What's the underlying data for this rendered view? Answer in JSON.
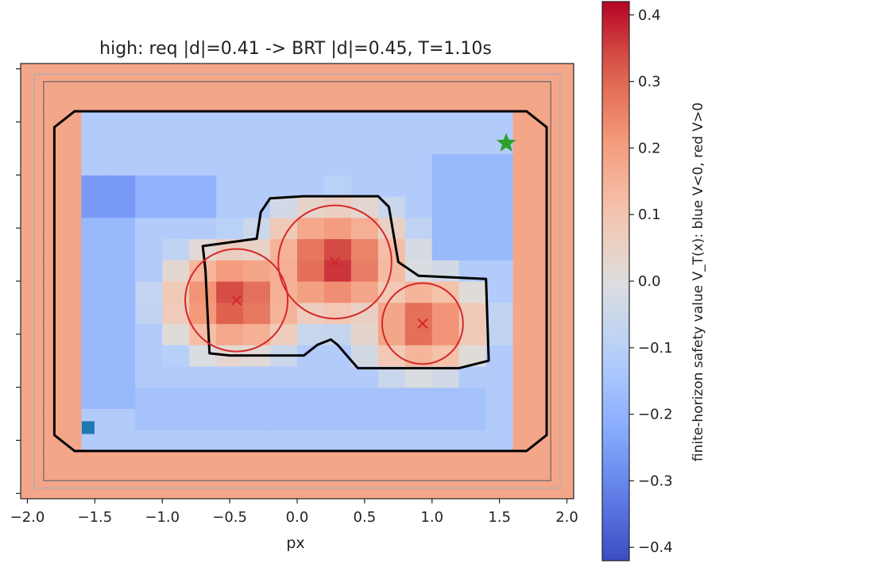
{
  "chart_data": {
    "type": "heatmap",
    "title": "high: req |d|=0.41 -> BRT |d|=0.45, T=1.10s",
    "xlabel": "px",
    "ylabel": "",
    "xlim": [
      -2.05,
      2.05
    ],
    "ylim": [
      -2.05,
      2.05
    ],
    "x_ticks": [
      -2.0,
      -1.5,
      -1.0,
      -0.5,
      0.0,
      0.5,
      1.0,
      1.5,
      2.0
    ],
    "x_tick_labels": [
      "−2.0",
      "−1.5",
      "−1.0",
      "−0.5",
      "0.0",
      "0.5",
      "1.0",
      "1.5",
      "2.0"
    ],
    "y_ticks": [
      -2.0,
      -1.5,
      -1.0,
      -0.5,
      0.0,
      0.5,
      1.0,
      1.5,
      2.0
    ],
    "grid": false,
    "colormap": {
      "name": "coolwarm",
      "vmin": -0.42,
      "vmax": 0.42,
      "low_color": "#3b4cc0",
      "mid_color": "#dddddd",
      "high_color": "#b40426"
    },
    "colorbar": {
      "label": "finite-horizon safety value V_T(x): blue V<0, red V>0",
      "ticks": [
        -0.4,
        -0.3,
        -0.2,
        -0.1,
        0.0,
        0.1,
        0.2,
        0.3,
        0.4
      ],
      "tick_labels": [
        "−0.4",
        "−0.3",
        "−0.2",
        "−0.1",
        "0.0",
        "0.1",
        "0.2",
        "0.3",
        "0.4"
      ]
    },
    "heatmap": {
      "x_range": [
        -2.0,
        2.0
      ],
      "y_range": [
        -2.0,
        2.0
      ],
      "nx": 20,
      "ny": 20,
      "model": {
        "base_value": -0.12,
        "wall_distance": 1.78,
        "wall_slope": 1.8,
        "wall_max": 0.18,
        "slopes": [
          {
            "xmin": -1.7,
            "xmax": -1.2,
            "ymin": -1.15,
            "ymax": 1.05,
            "delta": -0.06
          },
          {
            "xmin": -1.7,
            "xmax": -0.55,
            "ymin": 0.65,
            "ymax": 1.05,
            "delta": -0.08
          },
          {
            "xmin": 1.1,
            "xmax": 1.55,
            "ymin": 0.3,
            "ymax": 1.1,
            "delta": -0.06
          },
          {
            "xmin": -1.2,
            "xmax": 1.5,
            "ymin": -1.45,
            "ymax": -1.05,
            "delta": -0.03
          }
        ]
      },
      "obstacles": [
        {
          "cx": -0.45,
          "cy": -0.18,
          "r": 0.38,
          "peak": 0.4
        },
        {
          "cx": 0.28,
          "cy": 0.18,
          "r": 0.42,
          "peak": 0.42
        },
        {
          "cx": 0.93,
          "cy": -0.4,
          "r": 0.3,
          "peak": 0.36
        }
      ]
    },
    "outer_contour": [
      [
        -1.8,
        1.45
      ],
      [
        -1.65,
        1.6
      ],
      [
        1.7,
        1.6
      ],
      [
        1.85,
        1.45
      ],
      [
        1.85,
        -1.45
      ],
      [
        1.7,
        -1.6
      ],
      [
        -1.65,
        -1.6
      ],
      [
        -1.8,
        -1.45
      ]
    ],
    "inner_contour": [
      [
        -0.7,
        0.33
      ],
      [
        -0.3,
        0.4
      ],
      [
        -0.27,
        0.65
      ],
      [
        -0.2,
        0.78
      ],
      [
        0.05,
        0.8
      ],
      [
        0.6,
        0.8
      ],
      [
        0.68,
        0.7
      ],
      [
        0.75,
        0.18
      ],
      [
        0.9,
        0.05
      ],
      [
        1.4,
        0.02
      ],
      [
        1.42,
        -0.75
      ],
      [
        1.2,
        -0.82
      ],
      [
        0.45,
        -0.82
      ],
      [
        0.3,
        -0.6
      ],
      [
        0.25,
        -0.55
      ],
      [
        0.15,
        -0.6
      ],
      [
        0.05,
        -0.7
      ],
      [
        -0.15,
        -0.7
      ],
      [
        -0.5,
        -0.7
      ],
      [
        -0.65,
        -0.68
      ],
      [
        -0.68,
        0.1
      ]
    ],
    "obstacle_circles": [
      {
        "cx": -0.45,
        "cy": -0.18,
        "r": 0.38
      },
      {
        "cx": 0.28,
        "cy": 0.18,
        "r": 0.42
      },
      {
        "cx": 0.93,
        "cy": -0.4,
        "r": 0.3
      }
    ],
    "obstacle_centers": [
      {
        "x": -0.45,
        "y": -0.18
      },
      {
        "x": 0.28,
        "y": 0.18
      },
      {
        "x": 0.93,
        "y": -0.4
      }
    ],
    "start_marker": {
      "x": -1.55,
      "y": -1.38,
      "shape": "square",
      "color": "#1f77b4"
    },
    "goal_marker": {
      "x": 1.55,
      "y": 1.3,
      "shape": "star",
      "color": "#2ca02c"
    },
    "contour_color": "#000000",
    "obstacle_color": "#d62728"
  }
}
